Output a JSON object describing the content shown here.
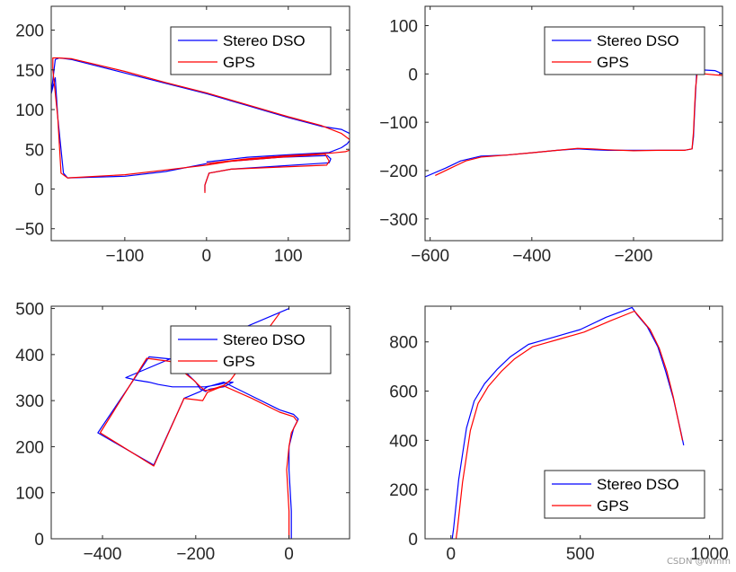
{
  "chart_data": [
    {
      "type": "line",
      "xlim": [
        -190,
        175
      ],
      "ylim": [
        -65,
        230
      ],
      "xticks": [
        -100,
        0,
        100
      ],
      "yticks": [
        -50,
        0,
        50,
        100,
        150,
        200
      ],
      "legend_position": "top-right",
      "grid": false,
      "series": [
        {
          "name": "Stereo DSO",
          "color": "#0000ff",
          "x": [
            -2,
            -2,
            3,
            30,
            150,
            152,
            148,
            90,
            30,
            0,
            -50,
            -100,
            -170,
            -175,
            -182,
            -185,
            -190,
            -185,
            -180,
            -165,
            -100,
            -50,
            0,
            50,
            100,
            140,
            165,
            175,
            176,
            172,
            165,
            150,
            100,
            50,
            0
          ],
          "y": [
            -3,
            5,
            20,
            25,
            33,
            38,
            42,
            40,
            35,
            32,
            22,
            16,
            14,
            20,
            90,
            140,
            120,
            163,
            165,
            163,
            146,
            133,
            120,
            105,
            90,
            79,
            75,
            70,
            62,
            57,
            52,
            46,
            43,
            40,
            34
          ]
        },
        {
          "name": "GPS",
          "color": "#ff0000",
          "x": [
            -2,
            -2,
            3,
            30,
            147,
            150,
            145,
            90,
            30,
            0,
            -50,
            -100,
            -170,
            -178,
            -182,
            -188,
            -188,
            -182,
            -165,
            -100,
            -50,
            0,
            50,
            100,
            140,
            165,
            178,
            178,
            170,
            160,
            150,
            100,
            50,
            0
          ],
          "y": [
            -5,
            5,
            20,
            25,
            30,
            35,
            44,
            40,
            35,
            30,
            24,
            18,
            14,
            20,
            90,
            150,
            165,
            165,
            164,
            148,
            134,
            121,
            106,
            91,
            80,
            70,
            60,
            50,
            47,
            46,
            45,
            42,
            38,
            32
          ]
        }
      ]
    },
    {
      "type": "line",
      "xlim": [
        -610,
        -25
      ],
      "ylim": [
        -345,
        140
      ],
      "xticks": [
        -600,
        -400,
        -200
      ],
      "yticks": [
        -300,
        -200,
        -100,
        0,
        100
      ],
      "legend_position": "top-right",
      "grid": false,
      "series": [
        {
          "name": "Stereo DSO",
          "color": "#0000ff",
          "x": [
            -610,
            -570,
            -540,
            -500,
            -450,
            -400,
            -350,
            -310,
            -280,
            -250,
            -200,
            -150,
            -100,
            -85,
            -82,
            -80,
            -78,
            -76,
            -74,
            -72,
            -70,
            -60,
            -40,
            -25
          ],
          "y": [
            -213,
            -195,
            -180,
            -170,
            -168,
            -163,
            -158,
            -155,
            -157,
            -158,
            -158,
            -158,
            -158,
            -155,
            -130,
            -80,
            -40,
            0,
            8,
            9,
            8,
            8,
            7,
            0
          ]
        },
        {
          "name": "GPS",
          "color": "#ff0000",
          "x": [
            -590,
            -560,
            -530,
            -500,
            -450,
            -400,
            -350,
            -310,
            -280,
            -250,
            -200,
            -150,
            -100,
            -85,
            -82,
            -80,
            -78,
            -75,
            -72,
            -70,
            -60,
            -40,
            -25
          ],
          "y": [
            -210,
            -195,
            -180,
            -172,
            -168,
            -163,
            -158,
            -154,
            -155,
            -157,
            -159,
            -158,
            -158,
            -155,
            -120,
            -70,
            -30,
            0,
            3,
            2,
            0,
            -2,
            -3
          ]
        }
      ]
    },
    {
      "type": "line",
      "xlim": [
        -510,
        130
      ],
      "ylim": [
        0,
        505
      ],
      "xticks": [
        -400,
        -200,
        0
      ],
      "yticks": [
        0,
        100,
        200,
        300,
        400,
        500
      ],
      "legend_position": "top-right",
      "grid": false,
      "series": [
        {
          "name": "Stereo DSO",
          "color": "#0000ff",
          "x": [
            5,
            5,
            0,
            0,
            10,
            20,
            10,
            -20,
            -80,
            -140,
            -175,
            -190,
            -225,
            -290,
            -410,
            -300,
            -250,
            -200,
            -190,
            -178,
            -180,
            -170,
            -140,
            -120,
            -130,
            -150,
            -180,
            -200,
            -240,
            -250,
            -280,
            -300,
            -330,
            -350,
            0
          ],
          "y": [
            0,
            60,
            150,
            200,
            240,
            260,
            270,
            280,
            310,
            340,
            330,
            320,
            305,
            160,
            230,
            395,
            390,
            340,
            325,
            320,
            320,
            325,
            330,
            340,
            340,
            335,
            330,
            330,
            330,
            330,
            335,
            340,
            345,
            350,
            500
          ]
        },
        {
          "name": "GPS",
          "color": "#ff0000",
          "x": [
            0,
            0,
            -5,
            0,
            5,
            18,
            10,
            -20,
            -80,
            -140,
            -175,
            -185,
            -225,
            -290,
            -405,
            -305,
            -255,
            -205,
            -190,
            -180,
            -170,
            -140,
            -125,
            -20
          ],
          "y": [
            0,
            60,
            150,
            200,
            230,
            255,
            265,
            275,
            305,
            332,
            318,
            300,
            305,
            158,
            230,
            392,
            385,
            345,
            330,
            322,
            323,
            333,
            345,
            490
          ]
        }
      ]
    },
    {
      "type": "line",
      "xlim": [
        -100,
        1050
      ],
      "ylim": [
        0,
        945
      ],
      "xticks": [
        0,
        500,
        1000
      ],
      "yticks": [
        0,
        200,
        400,
        600,
        800
      ],
      "legend_position": "bottom-right",
      "grid": false,
      "series": [
        {
          "name": "Stereo DSO",
          "color": "#0000ff",
          "x": [
            5,
            10,
            30,
            60,
            90,
            130,
            180,
            230,
            300,
            400,
            500,
            600,
            700,
            720,
            760,
            800,
            830,
            860,
            890,
            900
          ],
          "y": [
            0,
            40,
            240,
            450,
            560,
            630,
            690,
            740,
            790,
            820,
            850,
            900,
            940,
            910,
            860,
            780,
            680,
            570,
            430,
            380
          ]
        },
        {
          "name": "GPS",
          "color": "#ff0000",
          "x": [
            20,
            25,
            45,
            75,
            105,
            145,
            195,
            245,
            315,
            415,
            515,
            615,
            710,
            730,
            770,
            805,
            835,
            860,
            885,
            895
          ],
          "y": [
            0,
            40,
            230,
            440,
            550,
            620,
            680,
            730,
            780,
            810,
            840,
            885,
            925,
            900,
            850,
            775,
            680,
            575,
            450,
            400
          ]
        }
      ]
    }
  ],
  "watermark": "CSDN @Wmm"
}
